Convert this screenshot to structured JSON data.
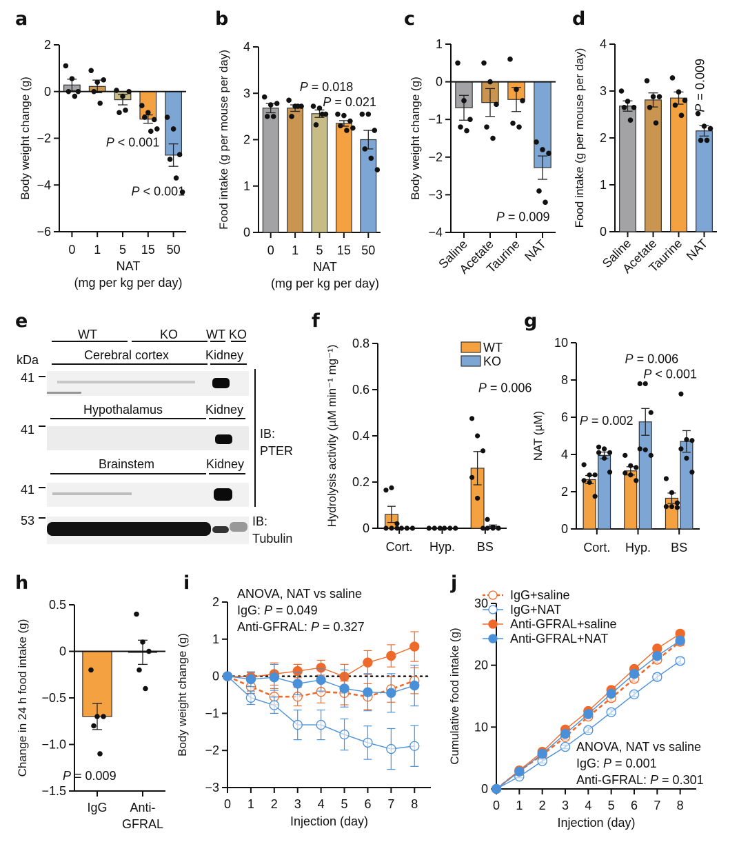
{
  "panel_letters": {
    "a": "a",
    "b": "b",
    "c": "c",
    "d": "d",
    "e": "e",
    "f": "f",
    "g": "g",
    "h": "h",
    "i": "i",
    "j": "j"
  },
  "colors": {
    "gray": "#a3a3a6",
    "brown": "#c99550",
    "khaki": "#c7bc85",
    "orange": "#f4a142",
    "blue": "#7ea6d4",
    "line_orange": "#ef6a2a",
    "line_blue": "#4a90d9"
  },
  "western_blot": {
    "kda_label": "kDa",
    "genotype_labels": [
      "WT",
      "KO",
      "WT",
      "KO"
    ],
    "tissue_rows": [
      {
        "tissue": "Cerebral cortex",
        "control": "Kidney",
        "marker": "41"
      },
      {
        "tissue": "Hypothalamus",
        "control": "Kidney",
        "marker": "41"
      },
      {
        "tissue": "Brainstem",
        "control": "Kidney",
        "marker": "41"
      }
    ],
    "tubulin_marker": "53",
    "ib_pter": [
      "IB:",
      "PTER"
    ],
    "ib_tubulin": [
      "IB:",
      "Tubulin"
    ]
  },
  "chart_data": [
    {
      "id": "a",
      "type": "bar",
      "title": "",
      "ylabel": "Body weight change (g)",
      "xlabel": "NAT",
      "xlabel2": "(mg per kg per day)",
      "categories": [
        "0",
        "1",
        "5",
        "15",
        "50"
      ],
      "bar_colors": [
        "gray",
        "brown",
        "khaki",
        "orange",
        "blue"
      ],
      "values": [
        0.28,
        0.22,
        -0.35,
        -1.18,
        -2.72
      ],
      "sem": [
        0.25,
        0.27,
        0.22,
        0.18,
        0.48
      ],
      "points": [
        [
          1.1,
          0.55,
          0.0,
          0.0,
          -0.2
        ],
        [
          0.9,
          0.4,
          0.5,
          0.0,
          -0.5
        ],
        [
          0.05,
          -0.2,
          0.0,
          -0.9,
          -0.8
        ],
        [
          -0.6,
          -0.9,
          -1.2,
          -1.1,
          -1.7,
          -1.6
        ],
        [
          -1.1,
          -1.6,
          -2.7,
          -2.9,
          -3.7,
          -4.3
        ]
      ],
      "ylim": [
        -6,
        2
      ],
      "yticks": [
        -6,
        -4,
        -2,
        0,
        2
      ],
      "ytick_labels": [
        "−6",
        "−4",
        "−2",
        "0",
        "2"
      ],
      "annotations": [
        {
          "text_italic": "P",
          "text": " < 0.001",
          "x_cat": 2.7,
          "y": -2.35
        },
        {
          "text_italic": "P",
          "text": " < 0.001",
          "x_cat": 3.7,
          "y": -4.45
        }
      ]
    },
    {
      "id": "b",
      "type": "bar",
      "ylabel": "Food intake (g per mouse per day)",
      "xlabel": "NAT",
      "xlabel2": "(mg per kg per day)",
      "categories": [
        "0",
        "1",
        "5",
        "15",
        "50"
      ],
      "bar_colors": [
        "gray",
        "brown",
        "khaki",
        "orange",
        "blue"
      ],
      "values": [
        2.68,
        2.68,
        2.56,
        2.35,
        2.0
      ],
      "sem": [
        0.1,
        0.07,
        0.08,
        0.06,
        0.2
      ],
      "points": [
        [
          2.92,
          2.75,
          2.78,
          2.5,
          2.5
        ],
        [
          2.85,
          2.72,
          2.72,
          2.5,
          2.72
        ],
        [
          2.72,
          2.68,
          2.55,
          2.32,
          2.55
        ],
        [
          2.55,
          2.52,
          2.4,
          2.3,
          2.2,
          2.25
        ],
        [
          2.55,
          2.55,
          2.2,
          1.8,
          1.6,
          1.35
        ]
      ],
      "ylim": [
        0,
        4
      ],
      "yticks": [
        0,
        1,
        2,
        3,
        4
      ],
      "ytick_labels": [
        "0",
        "1",
        "2",
        "3",
        "4"
      ],
      "annotations": [
        {
          "text_italic": "P",
          "text": " = 0.018",
          "x_cat": 2.6,
          "y": 3.05
        },
        {
          "text_italic": "P",
          "text": " = 0.021",
          "x_cat": 3.55,
          "y": 2.72
        }
      ]
    },
    {
      "id": "c",
      "type": "bar",
      "ylabel": "Body weight change (g)",
      "xlabel": "",
      "xlabel2": "",
      "categories": [
        "Saline",
        "Acetate",
        "Taurine",
        "NAT"
      ],
      "rotate_labels": true,
      "bar_colors": [
        "gray",
        "brown",
        "orange",
        "blue"
      ],
      "values": [
        -0.69,
        -0.55,
        -0.47,
        -2.28
      ],
      "sem": [
        0.33,
        0.37,
        0.32,
        0.31
      ],
      "points": [
        [
          0.5,
          -0.5,
          -1.0,
          -1.2,
          -1.3
        ],
        [
          0.5,
          0.0,
          -0.6,
          -1.2,
          -1.5
        ],
        [
          0.6,
          -0.2,
          -0.5,
          -1.1,
          -1.2
        ],
        [
          -1.6,
          -1.8,
          -1.9,
          -2.9,
          -3.2
        ]
      ],
      "ylim": [
        -4,
        1
      ],
      "yticks": [
        -4,
        -3,
        -2,
        -1,
        0,
        1
      ],
      "ytick_labels": [
        "−4",
        "−3",
        "−2",
        "−1",
        "0",
        "1"
      ],
      "annotations": [
        {
          "text_italic": "P",
          "text": " = 0.009",
          "x_cat": 2.55,
          "y": -3.7
        }
      ]
    },
    {
      "id": "d",
      "type": "bar",
      "ylabel": "Food intake (g per mouse per day)",
      "xlabel": "",
      "xlabel2": "",
      "categories": [
        "Saline",
        "Acetate",
        "Taurine",
        "NAT"
      ],
      "rotate_labels": true,
      "bar_colors": [
        "gray",
        "brown",
        "orange",
        "blue"
      ],
      "values": [
        2.68,
        2.81,
        2.85,
        2.15
      ],
      "sem": [
        0.11,
        0.15,
        0.13,
        0.11
      ],
      "points": [
        [
          3.0,
          2.78,
          2.65,
          2.65,
          2.38
        ],
        [
          3.22,
          2.88,
          2.88,
          2.65,
          2.32
        ],
        [
          3.28,
          2.98,
          2.8,
          2.7,
          2.48
        ],
        [
          2.52,
          2.25,
          2.2,
          1.95,
          1.95
        ]
      ],
      "ylim": [
        0,
        4
      ],
      "yticks": [
        0,
        1,
        2,
        3,
        4
      ],
      "ytick_labels": [
        "0",
        "1",
        "2",
        "3",
        "4"
      ],
      "annotations": [
        {
          "text_italic": "P",
          "text": " = 0.009",
          "x_cat": 3.0,
          "y": 2.55,
          "rotate": true
        }
      ]
    },
    {
      "id": "f",
      "type": "grouped-bar",
      "ylabel": "Hydrolysis activity (µM min⁻¹ mg⁻¹)",
      "categories": [
        "Cort.",
        "Hyp.",
        "BS"
      ],
      "series": [
        {
          "name": "WT",
          "color": "orange",
          "values": [
            0.06,
            0.0,
            0.26
          ],
          "sem": [
            0.035,
            0.0,
            0.072
          ],
          "points": [
            [
              0.165,
              0.175,
              0.02,
              0.0,
              0.0,
              0.0
            ],
            [
              0,
              0,
              0,
              0,
              0,
              0
            ],
            [
              0.475,
              0.4,
              0.335,
              0.22,
              0.13,
              0.0
            ]
          ]
        },
        {
          "name": "KO",
          "color": "blue",
          "values": [
            0.0,
            0.0,
            0.008
          ],
          "sem": [
            0.0,
            0.0,
            0.006
          ],
          "points": [
            [
              0,
              0,
              0,
              0,
              0,
              0
            ],
            [
              0,
              0,
              0,
              0,
              0,
              0
            ],
            [
              0.038,
              0.0,
              0.0,
              0.0,
              0.005,
              0.0
            ]
          ]
        }
      ],
      "ylim": [
        0,
        0.8
      ],
      "yticks": [
        0,
        0.2,
        0.4,
        0.6,
        0.8
      ],
      "ytick_labels": [
        "0",
        "0.2",
        "0.4",
        "0.6",
        "0.8"
      ],
      "legend": "top-right",
      "annotations": [
        {
          "text_italic": "P",
          "text": " = 0.006",
          "x_cat": 2.0,
          "y": 0.59
        }
      ]
    },
    {
      "id": "g",
      "type": "grouped-bar",
      "ylabel": "NAT (µM)",
      "categories": [
        "Cort.",
        "Hyp.",
        "BS"
      ],
      "series": [
        {
          "name": "WT",
          "color": "orange",
          "values": [
            2.65,
            3.12,
            1.65
          ],
          "sem": [
            0.22,
            0.22,
            0.28
          ],
          "points": [
            [
              3.45,
              2.9,
              2.9,
              2.6,
              2.5,
              1.75
            ],
            [
              3.95,
              3.4,
              3.3,
              3.0,
              2.9,
              2.6
            ],
            [
              2.7,
              1.95,
              1.4,
              1.2,
              1.2,
              1.15
            ]
          ]
        },
        {
          "name": "KO",
          "color": "blue",
          "values": [
            3.95,
            5.75,
            4.7
          ],
          "sem": [
            0.18,
            0.72,
            0.58
          ],
          "points": [
            [
              4.4,
              4.3,
              4.1,
              4.1,
              3.8,
              3.05
            ],
            [
              7.8,
              7.8,
              6.25,
              4.3,
              4.25,
              3.95
            ],
            [
              7.25,
              4.8,
              4.75,
              4.3,
              3.8,
              3.05
            ]
          ]
        }
      ],
      "ylim": [
        0,
        10
      ],
      "yticks": [
        0,
        2,
        4,
        6,
        8,
        10
      ],
      "ytick_labels": [
        "0",
        "2",
        "4",
        "6",
        "8",
        "10"
      ],
      "annotations": [
        {
          "text_italic": "P",
          "text": " = 0.002",
          "x_cat": -0.25,
          "y": 5.6
        },
        {
          "text_italic": "P",
          "text": " = 0.006",
          "x_cat": 0.85,
          "y": 8.9
        },
        {
          "text_italic": "P",
          "text": " < 0.001",
          "x_cat": 1.3,
          "y": 8.1
        }
      ]
    },
    {
      "id": "h",
      "type": "bar",
      "ylabel": "Change in 24 h food intake (g)",
      "categories": [
        "IgG",
        "Anti-\nGFRAL"
      ],
      "category_lines": [
        [
          "IgG"
        ],
        [
          "Anti-",
          "GFRAL"
        ]
      ],
      "bar_colors": [
        "orange",
        "blue"
      ],
      "values": [
        -0.7,
        -0.01
      ],
      "sem": [
        0.14,
        0.13
      ],
      "points": [
        [
          -0.2,
          -0.7,
          -0.7,
          -0.8,
          -1.1
        ],
        [
          0.4,
          0.1,
          0.0,
          -0.2,
          -0.4
        ]
      ],
      "hide_bar": [
        false,
        true
      ],
      "ylim": [
        -1.5,
        0.5
      ],
      "yticks": [
        -1.5,
        -1.0,
        -0.5,
        0,
        0.5
      ],
      "ytick_labels": [
        "−1.5",
        "−1.0",
        "−0.5",
        "0",
        "0.5"
      ],
      "annotations": [
        {
          "text_italic": "P",
          "text": " = 0.009",
          "x_cat": 0.0,
          "y": -1.38
        }
      ]
    },
    {
      "id": "i",
      "type": "line",
      "ylabel": "Body weight change (g)",
      "xlabel": "Injection (day)",
      "x": [
        0,
        1,
        2,
        3,
        4,
        5,
        6,
        7,
        8
      ],
      "xlim": [
        0,
        8.7
      ],
      "ylim": [
        -3,
        2
      ],
      "yticks": [
        -3,
        -2,
        -1,
        0,
        1,
        2
      ],
      "ytick_labels": [
        "−3",
        "−2",
        "−1",
        "0",
        "1",
        "2"
      ],
      "reference_line": 0,
      "series": [
        {
          "name": "IgG+saline",
          "color": "line_orange",
          "marker": "open",
          "dashed": true,
          "values": [
            0,
            -0.28,
            -0.55,
            -0.55,
            -0.42,
            -0.45,
            -0.55,
            -0.35,
            -0.12
          ],
          "sem": [
            0,
            0.18,
            0.22,
            0.25,
            0.3,
            0.32,
            0.35,
            0.35,
            0.35
          ]
        },
        {
          "name": "IgG+NAT",
          "color": "line_blue",
          "marker": "open",
          "dashed": false,
          "values": [
            0,
            -0.58,
            -0.78,
            -1.31,
            -1.31,
            -1.57,
            -1.79,
            -1.96,
            -1.88
          ],
          "sem": [
            0,
            0.18,
            0.22,
            0.4,
            0.4,
            0.42,
            0.45,
            0.55,
            0.55
          ]
        },
        {
          "name": "Anti-GFRAL+saline",
          "color": "line_orange",
          "marker": "filled",
          "dashed": false,
          "values": [
            0,
            -0.02,
            0.06,
            0.14,
            0.23,
            -0.01,
            0.37,
            0.55,
            0.8
          ],
          "sem": [
            0,
            0.12,
            0.3,
            0.18,
            0.2,
            0.33,
            0.32,
            0.3,
            0.4
          ]
        },
        {
          "name": "Anti-GFRAL+NAT",
          "color": "line_blue",
          "marker": "filled",
          "dashed": false,
          "values": [
            0,
            -0.08,
            -0.03,
            -0.2,
            -0.1,
            -0.33,
            -0.43,
            -0.45,
            -0.25
          ],
          "sem": [
            0,
            0.2,
            0.35,
            0.3,
            0.3,
            0.5,
            0.5,
            0.52,
            0.55
          ]
        }
      ],
      "annotation_lines": [
        "ANOVA, NAT vs saline",
        "IgG: |P| = 0.049",
        "Anti-GFRAL: |P| = 0.327"
      ]
    },
    {
      "id": "j",
      "type": "line",
      "ylabel": "Cumulative food intake (g)",
      "xlabel": "Injection (day)",
      "x": [
        0,
        1,
        2,
        3,
        4,
        5,
        6,
        7,
        8
      ],
      "xlim": [
        0,
        8.7
      ],
      "ylim": [
        0,
        30
      ],
      "yticks": [
        0,
        10,
        20,
        30
      ],
      "ytick_labels": [
        "0",
        "10",
        "20",
        "30"
      ],
      "legend": "top-left",
      "series": [
        {
          "name": "IgG+saline",
          "color": "line_orange",
          "marker": "open",
          "dashed": true,
          "values": [
            0,
            2.9,
            5.5,
            8.4,
            11.7,
            14.7,
            17.8,
            20.9,
            23.8
          ],
          "sem": [
            0,
            0.2,
            0.3,
            0.4,
            0.4,
            0.5,
            0.5,
            0.5,
            0.6
          ]
        },
        {
          "name": "IgG+NAT",
          "color": "line_blue",
          "marker": "open",
          "dashed": false,
          "values": [
            0,
            2.0,
            4.5,
            6.8,
            9.5,
            12.4,
            15.3,
            18.1,
            20.7
          ],
          "sem": [
            0,
            0.2,
            0.3,
            0.3,
            0.4,
            0.4,
            0.4,
            0.5,
            0.5
          ]
        },
        {
          "name": "Anti-GFRAL+saline",
          "color": "line_orange",
          "marker": "filled",
          "dashed": false,
          "values": [
            0,
            3.0,
            6.0,
            9.6,
            12.6,
            16.0,
            19.4,
            22.7,
            25.1
          ],
          "sem": [
            0,
            0.2,
            0.2,
            0.3,
            0.3,
            0.4,
            0.4,
            0.4,
            0.5
          ]
        },
        {
          "name": "Anti-GFRAL+NAT",
          "color": "line_blue",
          "marker": "filled",
          "dashed": false,
          "values": [
            0,
            2.8,
            5.7,
            8.9,
            12.1,
            15.4,
            18.6,
            21.5,
            24.0
          ],
          "sem": [
            0,
            0.2,
            0.3,
            0.3,
            0.4,
            0.4,
            0.5,
            0.5,
            0.5
          ]
        }
      ],
      "annotation_lines": [
        "ANOVA, NAT vs saline",
        "IgG: |P| = 0.001",
        "Anti-GFRAL: |P| = 0.301"
      ]
    }
  ]
}
